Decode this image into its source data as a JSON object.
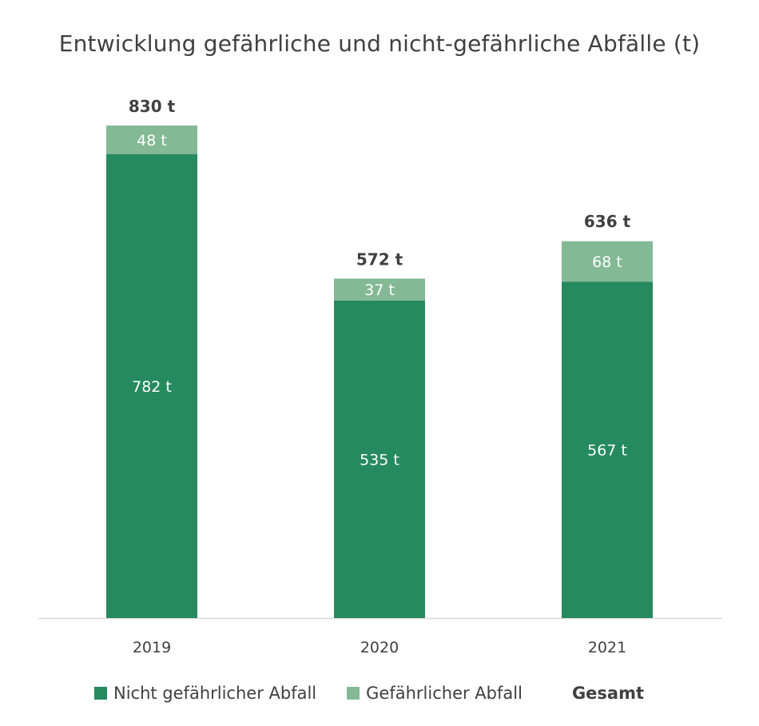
{
  "chart_data": {
    "type": "bar",
    "stacked": true,
    "title": "Entwicklung gefährliche und nicht-gefährliche Abfälle (t)",
    "categories": [
      "2019",
      "2020",
      "2021"
    ],
    "series": [
      {
        "name": "Nicht gefährlicher Abfall",
        "values": [
          782,
          535,
          567
        ],
        "labels": [
          "782 t",
          "535 t",
          "567 t"
        ],
        "color": "#268a5f"
      },
      {
        "name": "Gefährlicher Abfall",
        "values": [
          48,
          37,
          68
        ],
        "labels": [
          "48 t",
          "37 t",
          "68 t"
        ],
        "color": "#84b996"
      }
    ],
    "totals": {
      "name": "Gesamt",
      "values": [
        830,
        572,
        636
      ],
      "labels": [
        "830 t",
        "572 t",
        "636 t"
      ]
    },
    "ylim": [
      0,
      830
    ],
    "grid": false,
    "legend": "bottom",
    "colors": {
      "text": "#404040",
      "baseline": "#d9d9d9"
    }
  }
}
